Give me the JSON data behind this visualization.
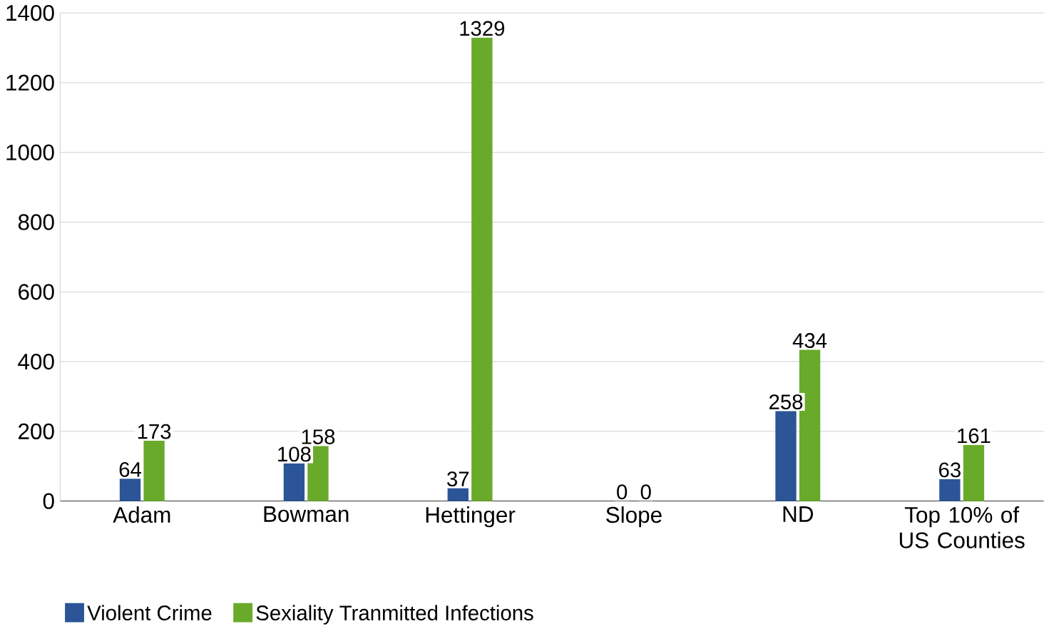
{
  "chart_data": {
    "type": "bar",
    "categories": [
      "Adam",
      "Bowman",
      "Hettinger",
      "Slope",
      "ND",
      "Top 10% of US Counties"
    ],
    "series": [
      {
        "name": "Violent Crime",
        "color": "#2b5596",
        "values": [
          64,
          108,
          37,
          0,
          258,
          63
        ]
      },
      {
        "name": "Sexiality Tranmitted Infections",
        "color": "#6aaa2b",
        "values": [
          173,
          158,
          1329,
          0,
          434,
          161
        ]
      }
    ],
    "ylim": [
      0,
      1400
    ],
    "yticks": [
      0,
      200,
      400,
      600,
      800,
      1000,
      1200,
      1400
    ],
    "grid": "y",
    "legend": "bottom",
    "data_labels": true
  }
}
